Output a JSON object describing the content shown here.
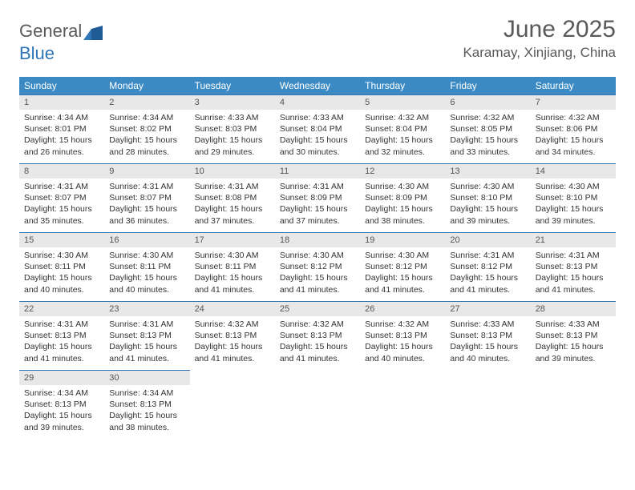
{
  "brand": {
    "part1": "General",
    "part2": "Blue"
  },
  "title": "June 2025",
  "location": "Karamay, Xinjiang, China",
  "colors": {
    "header_bg": "#3b8ac4",
    "border": "#2f75b5",
    "daynum_bg": "#e8e8e8",
    "text": "#333333",
    "muted": "#5a5a5a"
  },
  "weekdays": [
    "Sunday",
    "Monday",
    "Tuesday",
    "Wednesday",
    "Thursday",
    "Friday",
    "Saturday"
  ],
  "weeks": [
    [
      {
        "n": "1",
        "sr": "Sunrise: 4:34 AM",
        "ss": "Sunset: 8:01 PM",
        "dl1": "Daylight: 15 hours",
        "dl2": "and 26 minutes."
      },
      {
        "n": "2",
        "sr": "Sunrise: 4:34 AM",
        "ss": "Sunset: 8:02 PM",
        "dl1": "Daylight: 15 hours",
        "dl2": "and 28 minutes."
      },
      {
        "n": "3",
        "sr": "Sunrise: 4:33 AM",
        "ss": "Sunset: 8:03 PM",
        "dl1": "Daylight: 15 hours",
        "dl2": "and 29 minutes."
      },
      {
        "n": "4",
        "sr": "Sunrise: 4:33 AM",
        "ss": "Sunset: 8:04 PM",
        "dl1": "Daylight: 15 hours",
        "dl2": "and 30 minutes."
      },
      {
        "n": "5",
        "sr": "Sunrise: 4:32 AM",
        "ss": "Sunset: 8:04 PM",
        "dl1": "Daylight: 15 hours",
        "dl2": "and 32 minutes."
      },
      {
        "n": "6",
        "sr": "Sunrise: 4:32 AM",
        "ss": "Sunset: 8:05 PM",
        "dl1": "Daylight: 15 hours",
        "dl2": "and 33 minutes."
      },
      {
        "n": "7",
        "sr": "Sunrise: 4:32 AM",
        "ss": "Sunset: 8:06 PM",
        "dl1": "Daylight: 15 hours",
        "dl2": "and 34 minutes."
      }
    ],
    [
      {
        "n": "8",
        "sr": "Sunrise: 4:31 AM",
        "ss": "Sunset: 8:07 PM",
        "dl1": "Daylight: 15 hours",
        "dl2": "and 35 minutes."
      },
      {
        "n": "9",
        "sr": "Sunrise: 4:31 AM",
        "ss": "Sunset: 8:07 PM",
        "dl1": "Daylight: 15 hours",
        "dl2": "and 36 minutes."
      },
      {
        "n": "10",
        "sr": "Sunrise: 4:31 AM",
        "ss": "Sunset: 8:08 PM",
        "dl1": "Daylight: 15 hours",
        "dl2": "and 37 minutes."
      },
      {
        "n": "11",
        "sr": "Sunrise: 4:31 AM",
        "ss": "Sunset: 8:09 PM",
        "dl1": "Daylight: 15 hours",
        "dl2": "and 37 minutes."
      },
      {
        "n": "12",
        "sr": "Sunrise: 4:30 AM",
        "ss": "Sunset: 8:09 PM",
        "dl1": "Daylight: 15 hours",
        "dl2": "and 38 minutes."
      },
      {
        "n": "13",
        "sr": "Sunrise: 4:30 AM",
        "ss": "Sunset: 8:10 PM",
        "dl1": "Daylight: 15 hours",
        "dl2": "and 39 minutes."
      },
      {
        "n": "14",
        "sr": "Sunrise: 4:30 AM",
        "ss": "Sunset: 8:10 PM",
        "dl1": "Daylight: 15 hours",
        "dl2": "and 39 minutes."
      }
    ],
    [
      {
        "n": "15",
        "sr": "Sunrise: 4:30 AM",
        "ss": "Sunset: 8:11 PM",
        "dl1": "Daylight: 15 hours",
        "dl2": "and 40 minutes."
      },
      {
        "n": "16",
        "sr": "Sunrise: 4:30 AM",
        "ss": "Sunset: 8:11 PM",
        "dl1": "Daylight: 15 hours",
        "dl2": "and 40 minutes."
      },
      {
        "n": "17",
        "sr": "Sunrise: 4:30 AM",
        "ss": "Sunset: 8:11 PM",
        "dl1": "Daylight: 15 hours",
        "dl2": "and 41 minutes."
      },
      {
        "n": "18",
        "sr": "Sunrise: 4:30 AM",
        "ss": "Sunset: 8:12 PM",
        "dl1": "Daylight: 15 hours",
        "dl2": "and 41 minutes."
      },
      {
        "n": "19",
        "sr": "Sunrise: 4:30 AM",
        "ss": "Sunset: 8:12 PM",
        "dl1": "Daylight: 15 hours",
        "dl2": "and 41 minutes."
      },
      {
        "n": "20",
        "sr": "Sunrise: 4:31 AM",
        "ss": "Sunset: 8:12 PM",
        "dl1": "Daylight: 15 hours",
        "dl2": "and 41 minutes."
      },
      {
        "n": "21",
        "sr": "Sunrise: 4:31 AM",
        "ss": "Sunset: 8:13 PM",
        "dl1": "Daylight: 15 hours",
        "dl2": "and 41 minutes."
      }
    ],
    [
      {
        "n": "22",
        "sr": "Sunrise: 4:31 AM",
        "ss": "Sunset: 8:13 PM",
        "dl1": "Daylight: 15 hours",
        "dl2": "and 41 minutes."
      },
      {
        "n": "23",
        "sr": "Sunrise: 4:31 AM",
        "ss": "Sunset: 8:13 PM",
        "dl1": "Daylight: 15 hours",
        "dl2": "and 41 minutes."
      },
      {
        "n": "24",
        "sr": "Sunrise: 4:32 AM",
        "ss": "Sunset: 8:13 PM",
        "dl1": "Daylight: 15 hours",
        "dl2": "and 41 minutes."
      },
      {
        "n": "25",
        "sr": "Sunrise: 4:32 AM",
        "ss": "Sunset: 8:13 PM",
        "dl1": "Daylight: 15 hours",
        "dl2": "and 41 minutes."
      },
      {
        "n": "26",
        "sr": "Sunrise: 4:32 AM",
        "ss": "Sunset: 8:13 PM",
        "dl1": "Daylight: 15 hours",
        "dl2": "and 40 minutes."
      },
      {
        "n": "27",
        "sr": "Sunrise: 4:33 AM",
        "ss": "Sunset: 8:13 PM",
        "dl1": "Daylight: 15 hours",
        "dl2": "and 40 minutes."
      },
      {
        "n": "28",
        "sr": "Sunrise: 4:33 AM",
        "ss": "Sunset: 8:13 PM",
        "dl1": "Daylight: 15 hours",
        "dl2": "and 39 minutes."
      }
    ],
    [
      {
        "n": "29",
        "sr": "Sunrise: 4:34 AM",
        "ss": "Sunset: 8:13 PM",
        "dl1": "Daylight: 15 hours",
        "dl2": "and 39 minutes."
      },
      {
        "n": "30",
        "sr": "Sunrise: 4:34 AM",
        "ss": "Sunset: 8:13 PM",
        "dl1": "Daylight: 15 hours",
        "dl2": "and 38 minutes."
      },
      null,
      null,
      null,
      null,
      null
    ]
  ]
}
